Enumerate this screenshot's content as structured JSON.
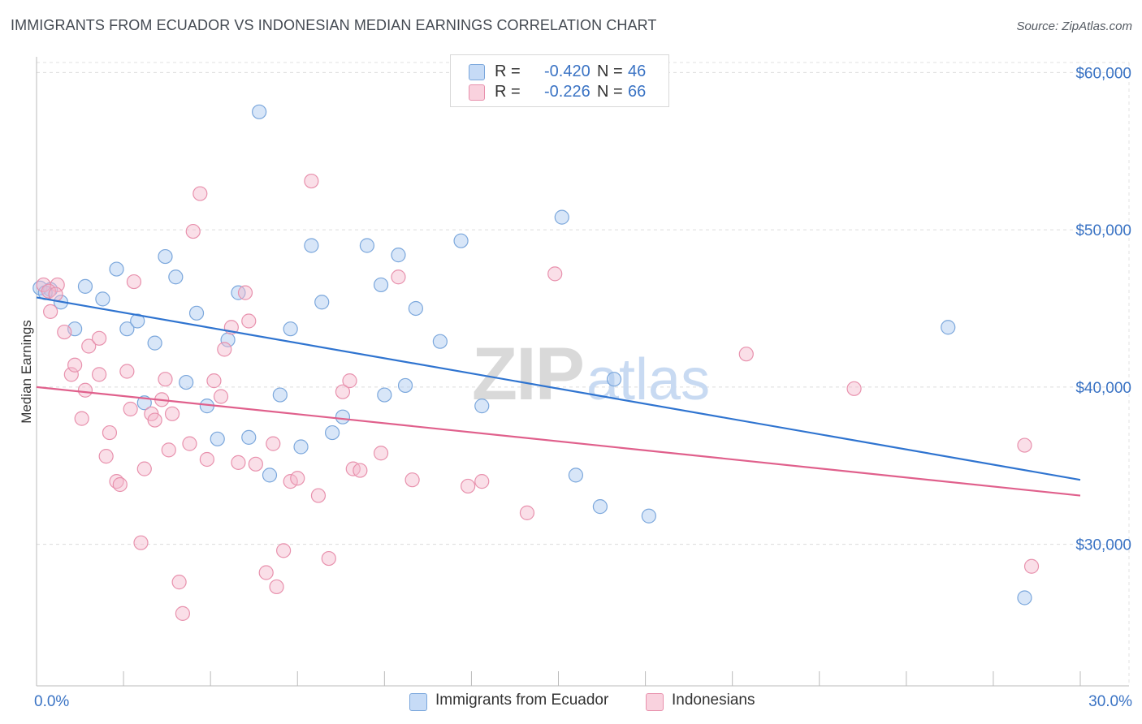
{
  "header": {
    "title": "IMMIGRANTS FROM ECUADOR VS INDONESIAN MEDIAN EARNINGS CORRELATION CHART",
    "source": "Source: ZipAtlas.com"
  },
  "watermark": {
    "zip": "ZIP",
    "atlas": "atlas"
  },
  "legend_top": {
    "rows": [
      {
        "r_label": "R =",
        "r_value": "-0.420",
        "n_label": "N =",
        "n_value": "46",
        "color": "#a9c8f0"
      },
      {
        "r_label": "R =",
        "r_value": "-0.226",
        "n_label": "N =",
        "n_value": "66",
        "color": "#f5b8cb"
      }
    ]
  },
  "legend_bottom": {
    "items": [
      {
        "label": "Immigrants from Ecuador",
        "color": "#a9c8f0"
      },
      {
        "label": "Indonesians",
        "color": "#f5b8cb"
      }
    ]
  },
  "chart_data": {
    "type": "scatter",
    "title": "IMMIGRANTS FROM ECUADOR VS INDONESIAN MEDIAN EARNINGS CORRELATION CHART",
    "xlabel": "",
    "ylabel": "Median Earnings",
    "xlim": [
      0,
      30
    ],
    "ylim": [
      21000,
      61000
    ],
    "x_tick_labels": [
      {
        "value": 0,
        "label": "0.0%"
      },
      {
        "value": 30,
        "label": "30.0%"
      }
    ],
    "y_tick_labels": [
      {
        "value": 30000,
        "label": "$30,000"
      },
      {
        "value": 40000,
        "label": "$40,000"
      },
      {
        "value": 50000,
        "label": "$50,000"
      },
      {
        "value": 60000,
        "label": "$60,000"
      }
    ],
    "grid": true,
    "legend_position": "bottom",
    "series": [
      {
        "name": "Immigrants from Ecuador",
        "color": "#a9c8f0",
        "stroke": "#7ba7dc",
        "trend_color": "#2f74d0",
        "trend": [
          [
            0,
            45700
          ],
          [
            30,
            34100
          ]
        ],
        "points": [
          [
            0.1,
            46300
          ],
          [
            0.4,
            46200
          ],
          [
            0.7,
            45400
          ],
          [
            1.1,
            43700
          ],
          [
            1.4,
            46400
          ],
          [
            1.9,
            45600
          ],
          [
            2.3,
            47500
          ],
          [
            2.6,
            43700
          ],
          [
            2.9,
            44200
          ],
          [
            3.1,
            39000
          ],
          [
            3.4,
            42800
          ],
          [
            3.7,
            48300
          ],
          [
            4.0,
            47000
          ],
          [
            4.3,
            40300
          ],
          [
            4.6,
            44700
          ],
          [
            4.9,
            38800
          ],
          [
            5.2,
            36700
          ],
          [
            5.5,
            43000
          ],
          [
            5.8,
            46000
          ],
          [
            6.1,
            36800
          ],
          [
            6.4,
            57500
          ],
          [
            6.7,
            34400
          ],
          [
            7.0,
            39500
          ],
          [
            7.3,
            43700
          ],
          [
            7.6,
            36200
          ],
          [
            7.9,
            49000
          ],
          [
            8.2,
            45400
          ],
          [
            8.5,
            37100
          ],
          [
            8.8,
            38100
          ],
          [
            9.5,
            49000
          ],
          [
            9.9,
            46500
          ],
          [
            10.0,
            39500
          ],
          [
            10.4,
            48400
          ],
          [
            10.6,
            40100
          ],
          [
            10.9,
            45000
          ],
          [
            11.6,
            42900
          ],
          [
            12.2,
            49300
          ],
          [
            12.8,
            38800
          ],
          [
            15.1,
            50800
          ],
          [
            15.5,
            34400
          ],
          [
            16.2,
            32400
          ],
          [
            16.6,
            40500
          ],
          [
            17.6,
            31800
          ],
          [
            26.2,
            43800
          ],
          [
            28.4,
            26600
          ],
          [
            0.25,
            46000
          ]
        ]
      },
      {
        "name": "Indonesians",
        "color": "#f5b8cb",
        "stroke": "#e891ad",
        "trend_color": "#e0608c",
        "trend": [
          [
            0,
            40000
          ],
          [
            30,
            33100
          ]
        ],
        "points": [
          [
            0.2,
            46500
          ],
          [
            0.4,
            44800
          ],
          [
            0.6,
            46500
          ],
          [
            0.8,
            43500
          ],
          [
            1.0,
            40800
          ],
          [
            1.1,
            41400
          ],
          [
            1.3,
            38000
          ],
          [
            1.4,
            39800
          ],
          [
            1.5,
            42600
          ],
          [
            1.8,
            40800
          ],
          [
            1.8,
            43100
          ],
          [
            2.0,
            35600
          ],
          [
            2.1,
            37100
          ],
          [
            2.3,
            34000
          ],
          [
            2.4,
            33800
          ],
          [
            2.6,
            41000
          ],
          [
            2.7,
            38600
          ],
          [
            2.8,
            46700
          ],
          [
            3.0,
            30100
          ],
          [
            3.1,
            34800
          ],
          [
            3.3,
            38300
          ],
          [
            3.4,
            37900
          ],
          [
            3.6,
            39200
          ],
          [
            3.7,
            40500
          ],
          [
            3.8,
            36000
          ],
          [
            3.9,
            38300
          ],
          [
            4.1,
            27600
          ],
          [
            4.2,
            25600
          ],
          [
            4.4,
            36400
          ],
          [
            4.5,
            49900
          ],
          [
            4.7,
            52300
          ],
          [
            4.9,
            35400
          ],
          [
            5.1,
            40400
          ],
          [
            5.3,
            39400
          ],
          [
            5.4,
            42400
          ],
          [
            5.6,
            43800
          ],
          [
            5.8,
            35200
          ],
          [
            6.0,
            46000
          ],
          [
            6.1,
            44200
          ],
          [
            6.3,
            35100
          ],
          [
            6.6,
            28200
          ],
          [
            6.8,
            36400
          ],
          [
            6.9,
            27300
          ],
          [
            7.1,
            29600
          ],
          [
            7.3,
            34000
          ],
          [
            7.5,
            34200
          ],
          [
            7.9,
            53100
          ],
          [
            8.1,
            33100
          ],
          [
            8.4,
            29100
          ],
          [
            8.8,
            39700
          ],
          [
            9.0,
            40400
          ],
          [
            9.1,
            34800
          ],
          [
            9.3,
            34700
          ],
          [
            9.9,
            35800
          ],
          [
            10.4,
            47000
          ],
          [
            10.8,
            34100
          ],
          [
            12.4,
            33700
          ],
          [
            12.8,
            34000
          ],
          [
            14.1,
            32000
          ],
          [
            14.9,
            47200
          ],
          [
            20.4,
            42100
          ],
          [
            23.5,
            39900
          ],
          [
            28.4,
            36300
          ],
          [
            28.6,
            28600
          ],
          [
            0.35,
            46100
          ],
          [
            0.55,
            45900
          ]
        ]
      }
    ]
  }
}
